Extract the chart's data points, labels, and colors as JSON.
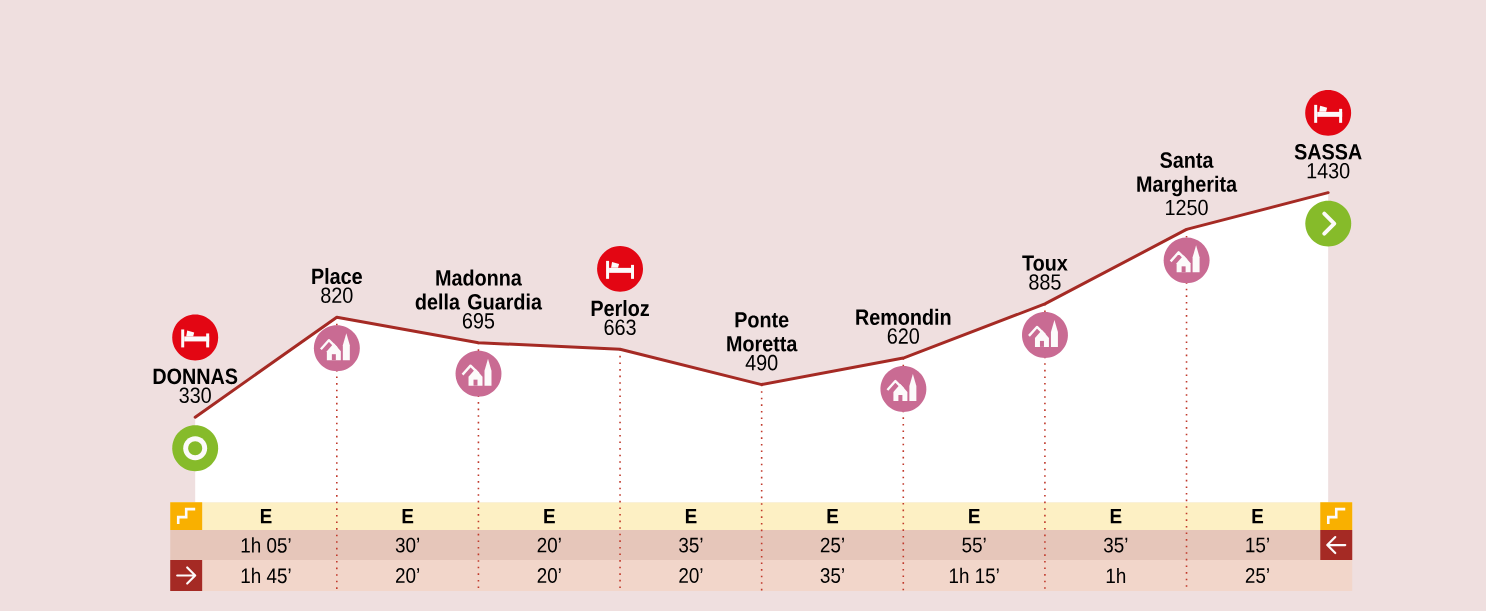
{
  "chart_data": {
    "type": "area",
    "categories": [
      "DONNAS",
      "Place",
      "Madonna della Guardia",
      "Perloz",
      "Ponte Moretta",
      "Remondin",
      "Toux",
      "Santa Margherita",
      "SASSA"
    ],
    "values": [
      330,
      820,
      695,
      663,
      490,
      620,
      885,
      1250,
      1430
    ],
    "color": "#a52a24",
    "data_labels": true,
    "tick_labels": "x",
    "grid": "x",
    "annotations": [
      "E",
      "E",
      "E",
      "E",
      "E",
      "E",
      "E",
      "E",
      "1h 05’",
      "30’",
      "20’",
      "35’",
      "25’",
      "55’",
      "35’",
      "15’",
      "1h 45’",
      "20’",
      "20’",
      "20’",
      "35’",
      "1h 15’",
      "1h",
      "25’"
    ]
  }
}
